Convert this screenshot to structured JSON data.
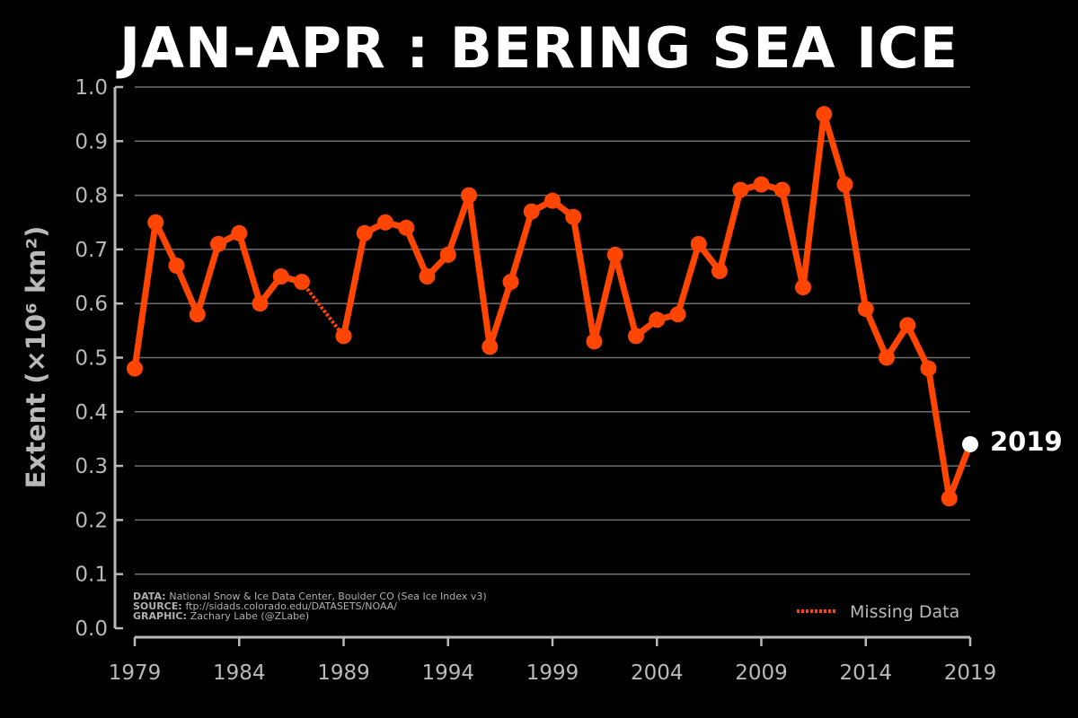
{
  "chart_data": {
    "type": "line",
    "title": "JAN-APR : BERING SEA ICE",
    "ylabel": "Extent (×10⁶ km²)",
    "xlabel": "",
    "xlim": [
      1979,
      2019
    ],
    "ylim": [
      0.0,
      1.0
    ],
    "grid": true,
    "x_ticks": [
      "1979",
      "1984",
      "1989",
      "1994",
      "1999",
      "2004",
      "2009",
      "2014",
      "2019"
    ],
    "y_ticks": [
      "0.0",
      "0.1",
      "0.2",
      "0.3",
      "0.4",
      "0.5",
      "0.6",
      "0.7",
      "0.8",
      "0.9",
      "1.0"
    ],
    "series": [
      {
        "color": "#ff4500",
        "x": [
          1979,
          1980,
          1981,
          1982,
          1983,
          1984,
          1985,
          1986,
          1987,
          1989,
          1990,
          1991,
          1992,
          1993,
          1994,
          1995,
          1996,
          1997,
          1998,
          1999,
          2000,
          2001,
          2002,
          2003,
          2004,
          2005,
          2006,
          2007,
          2008,
          2009,
          2010,
          2011,
          2012,
          2013,
          2014,
          2015,
          2016,
          2017,
          2018,
          2019
        ],
        "values": [
          0.48,
          0.75,
          0.67,
          0.58,
          0.71,
          0.73,
          0.6,
          0.65,
          0.64,
          0.54,
          0.73,
          0.75,
          0.74,
          0.65,
          0.69,
          0.8,
          0.52,
          0.64,
          0.77,
          0.79,
          0.76,
          0.53,
          0.69,
          0.54,
          0.57,
          0.58,
          0.71,
          0.66,
          0.81,
          0.82,
          0.81,
          0.63,
          0.95,
          0.82,
          0.59,
          0.5,
          0.56,
          0.48,
          0.24,
          0.34
        ]
      }
    ],
    "missing_data_gap": {
      "from": [
        1987,
        0.64
      ],
      "to": [
        1989,
        0.54
      ]
    },
    "highlight": {
      "x": 2019,
      "value": 0.34,
      "label": "2019",
      "color": "#ffffff"
    },
    "legend": {
      "label": "Missing Data",
      "placement": "bottom-right"
    },
    "credits": [
      {
        "key": "DATA:",
        "text": "National Snow & Ice Data Center, Boulder CO (Sea Ice Index v3)"
      },
      {
        "key": "SOURCE:",
        "text": "ftp://sidads.colorado.edu/DATASETS/NOAA/"
      },
      {
        "key": "GRAPHIC:",
        "text": "Zachary Labe (@ZLabe)"
      }
    ]
  }
}
